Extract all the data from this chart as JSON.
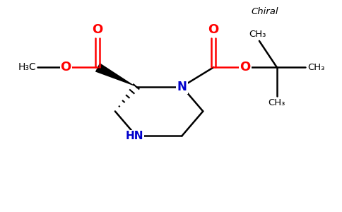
{
  "background_color": "#ffffff",
  "bond_color": "#000000",
  "oxygen_color": "#ff0000",
  "nitrogen_color": "#0000cc",
  "figsize": [
    4.84,
    3.0
  ],
  "dpi": 100,
  "xlim": [
    0,
    9.68
  ],
  "ylim": [
    0,
    6.0
  ]
}
